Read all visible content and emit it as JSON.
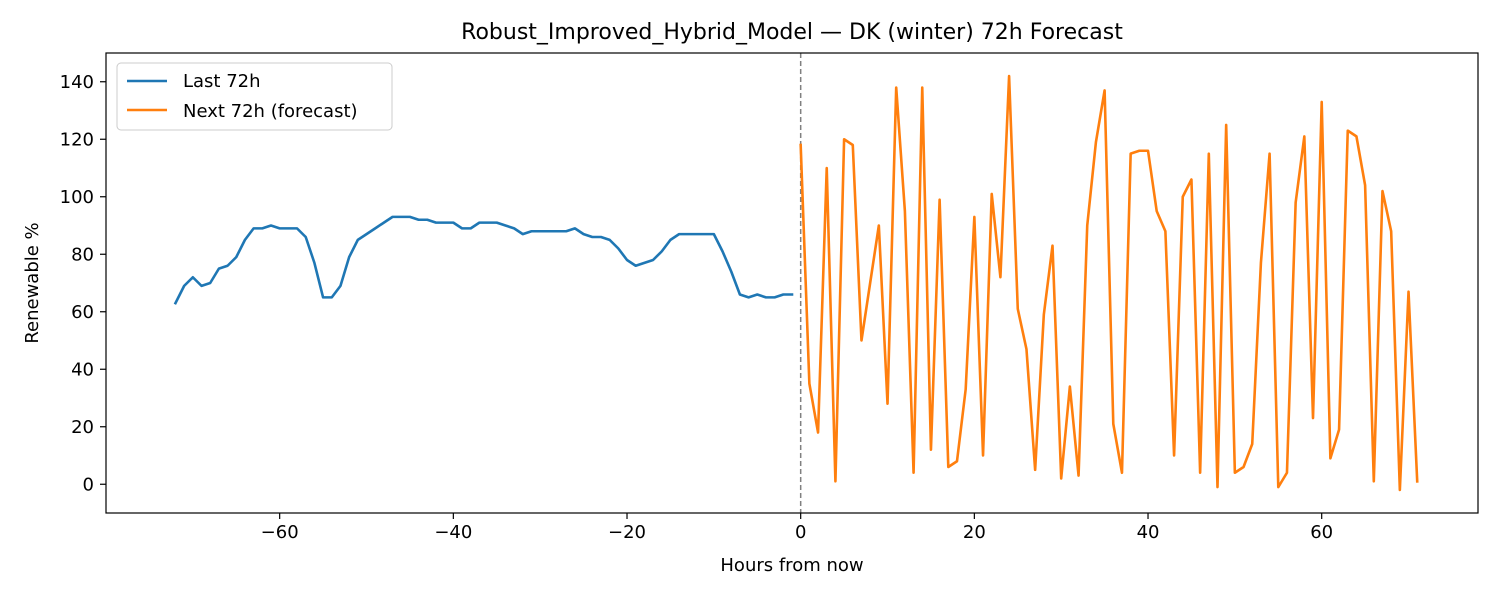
{
  "chart_data": {
    "type": "line",
    "title": "Robust_Improved_Hybrid_Model — DK (winter) 72h Forecast",
    "xlabel": "Hours from now",
    "ylabel": "Renewable %",
    "xlim": [
      -80,
      78
    ],
    "ylim": [
      -10,
      150
    ],
    "x_ticks": [
      -60,
      -40,
      -20,
      0,
      20,
      40,
      60
    ],
    "y_ticks": [
      0,
      20,
      40,
      60,
      80,
      100,
      120,
      140
    ],
    "x_tick_labels": [
      "−60",
      "−40",
      "−20",
      "0",
      "20",
      "40",
      "60"
    ],
    "y_tick_labels": [
      "0",
      "20",
      "40",
      "60",
      "80",
      "100",
      "120",
      "140"
    ],
    "grid": false,
    "legend_position": "top-left",
    "vline": {
      "x": 0,
      "style": "dashed",
      "color": "#808080"
    },
    "series": [
      {
        "name": "Last 72h",
        "color": "#1f77b4",
        "x": [
          -72,
          -71,
          -70,
          -69,
          -68,
          -67,
          -66,
          -65,
          -64,
          -63,
          -62,
          -61,
          -60,
          -59,
          -58,
          -57,
          -56,
          -55,
          -54,
          -53,
          -52,
          -51,
          -50,
          -49,
          -48,
          -47,
          -46,
          -45,
          -44,
          -43,
          -42,
          -41,
          -40,
          -39,
          -38,
          -37,
          -36,
          -35,
          -34,
          -33,
          -32,
          -31,
          -30,
          -29,
          -28,
          -27,
          -26,
          -25,
          -24,
          -23,
          -22,
          -21,
          -20,
          -19,
          -18,
          -17,
          -16,
          -15,
          -14,
          -13,
          -12,
          -11,
          -10,
          -9,
          -8,
          -7,
          -6,
          -5,
          -4,
          -3,
          -2,
          -1
        ],
        "y": [
          63,
          69,
          72,
          69,
          70,
          75,
          76,
          79,
          85,
          89,
          89,
          90,
          89,
          89,
          89,
          86,
          77,
          65,
          65,
          69,
          79,
          85,
          87,
          89,
          91,
          93,
          93,
          93,
          92,
          92,
          91,
          91,
          91,
          89,
          89,
          91,
          91,
          91,
          90,
          89,
          87,
          88,
          88,
          88,
          88,
          88,
          89,
          87,
          86,
          86,
          85,
          82,
          78,
          76,
          77,
          78,
          81,
          85,
          87,
          87,
          87,
          87,
          87,
          81,
          74,
          66,
          65,
          66,
          65,
          65,
          66,
          66
        ]
      },
      {
        "name": "Next 72h (forecast)",
        "color": "#ff7f0e",
        "x": [
          0,
          1,
          2,
          3,
          4,
          5,
          6,
          7,
          8,
          9,
          10,
          11,
          12,
          13,
          14,
          15,
          16,
          17,
          18,
          19,
          20,
          21,
          22,
          23,
          24,
          25,
          26,
          27,
          28,
          29,
          30,
          31,
          32,
          33,
          34,
          35,
          36,
          37,
          38,
          39,
          40,
          41,
          42,
          43,
          44,
          45,
          46,
          47,
          48,
          49,
          50,
          51,
          52,
          53,
          54,
          55,
          56,
          57,
          58,
          59,
          60,
          61,
          62,
          63,
          64,
          65,
          66,
          67,
          68,
          69,
          70,
          71
        ],
        "y": [
          118,
          35,
          18,
          110,
          1,
          120,
          118,
          50,
          70,
          90,
          28,
          138,
          95,
          4,
          138,
          12,
          99,
          6,
          8,
          33,
          93,
          10,
          101,
          72,
          142,
          61,
          47,
          5,
          59,
          83,
          2,
          34,
          3,
          90,
          119,
          137,
          21,
          4,
          115,
          116,
          116,
          95,
          88,
          10,
          100,
          106,
          4,
          115,
          -1,
          125,
          4,
          6,
          14,
          77,
          115,
          -1,
          4,
          98,
          121,
          23,
          133,
          9,
          19,
          123,
          121,
          104,
          1,
          102,
          88,
          -2,
          67,
          1
        ]
      }
    ]
  }
}
